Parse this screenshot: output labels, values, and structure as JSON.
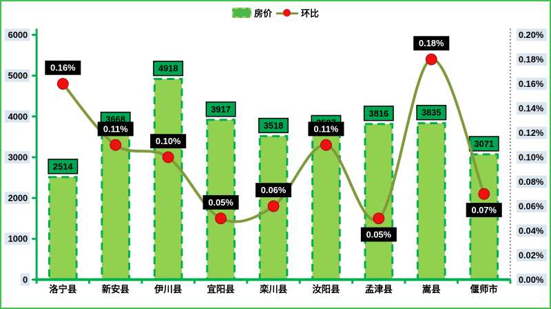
{
  "legend": {
    "bar_label": "房价",
    "line_label": "环比"
  },
  "chart_data": {
    "type": "combo-bar-line",
    "categories": [
      "洛宁县",
      "新安县",
      "伊川县",
      "宜阳县",
      "栾川县",
      "汝阳县",
      "孟津县",
      "嵩县",
      "偃师市"
    ],
    "series": [
      {
        "name": "房价",
        "type": "bar",
        "axis": "left",
        "values": [
          2514,
          3668,
          4918,
          3917,
          3518,
          3587,
          3816,
          3835,
          3071
        ],
        "labels": [
          "2514",
          "3668",
          "4918",
          "3917",
          "3518",
          "3587",
          "3816",
          "3835",
          "3071"
        ]
      },
      {
        "name": "环比",
        "type": "line",
        "axis": "right",
        "unit": "%",
        "values": [
          0.16,
          0.11,
          0.1,
          0.05,
          0.06,
          0.11,
          0.05,
          0.18,
          0.07
        ],
        "labels": [
          "0.16%",
          "0.11%",
          "0.10%",
          "0.05%",
          "0.06%",
          "0.11%",
          "0.05%",
          "0.18%",
          "0.07%"
        ]
      }
    ],
    "left_axis": {
      "min": 0,
      "max": 6000,
      "step": 1000,
      "ticks": [
        "0",
        "1000",
        "2000",
        "3000",
        "4000",
        "5000",
        "6000"
      ]
    },
    "right_axis": {
      "min": 0,
      "max": 0.2,
      "step": 0.02,
      "ticks": [
        "0.00%",
        "0.02%",
        "0.04%",
        "0.06%",
        "0.08%",
        "0.10%",
        "0.12%",
        "0.14%",
        "0.16%",
        "0.18%",
        "0.20%"
      ]
    },
    "point_label_positions": [
      "above",
      "above",
      "above",
      "above",
      "above",
      "above",
      "below",
      "above",
      "below"
    ],
    "legend_position": "top-center",
    "grid": false,
    "colors": {
      "bar_fill": "#92d050",
      "bar_border": "#00b04e",
      "bar_label_bg": "#00a651",
      "bar_label_text": "#000000",
      "line": "#7f9a3b",
      "marker": "#ee1111",
      "marker_edge": "#b00000",
      "point_label_bg": "#000000",
      "point_label_text": "#ffffff",
      "axis_green": "#00b050",
      "right_axis_dotted": "#808080",
      "axis_label_bg": "#dce6f1",
      "axis_label_text": "#000000",
      "frame_border": "#45c14f"
    }
  }
}
